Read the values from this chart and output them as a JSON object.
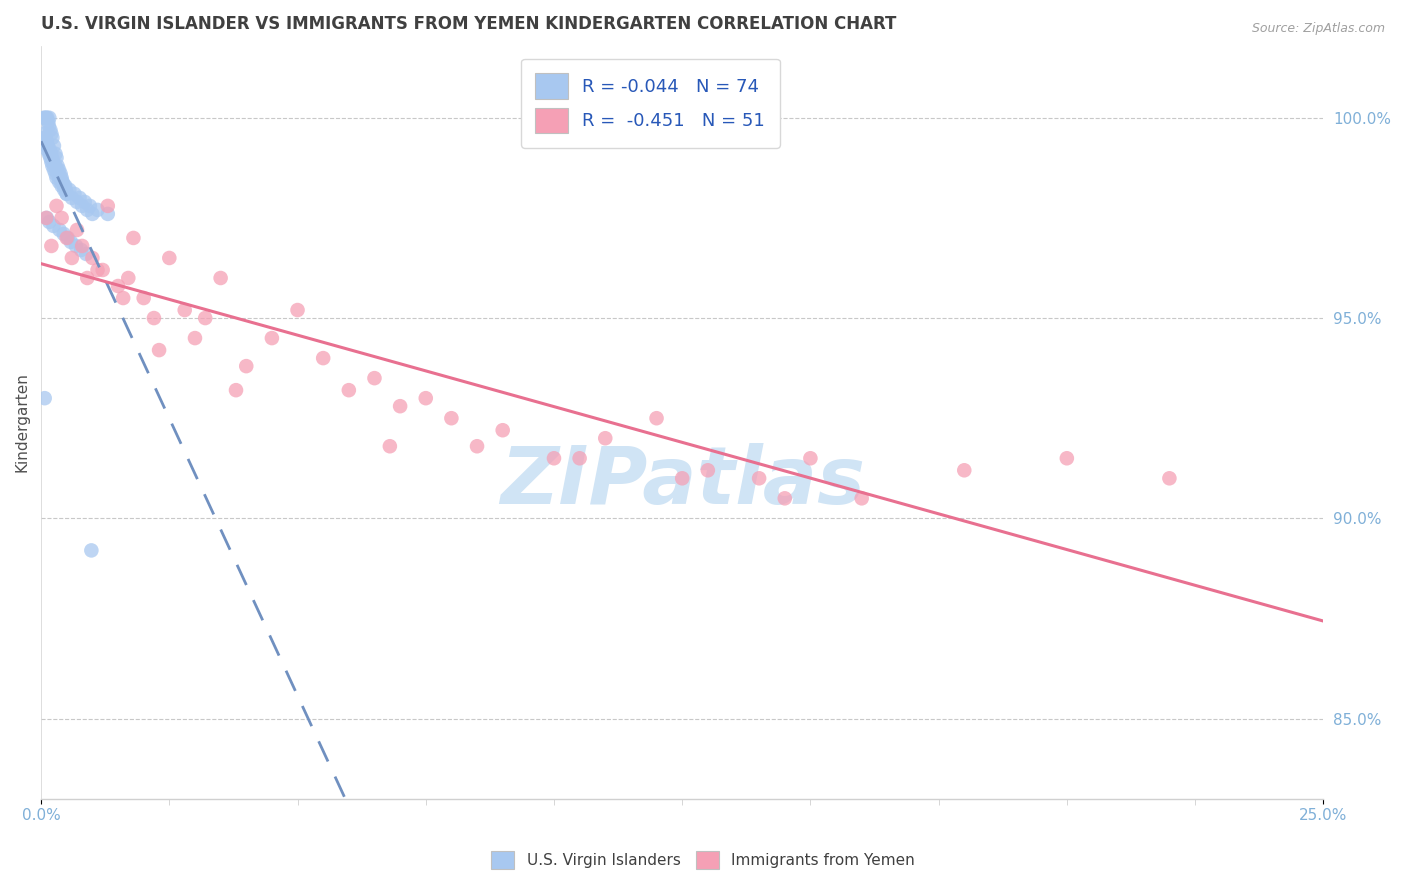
{
  "title": "U.S. VIRGIN ISLANDER VS IMMIGRANTS FROM YEMEN KINDERGARTEN CORRELATION CHART",
  "source": "Source: ZipAtlas.com",
  "ylabel": "Kindergarten",
  "xlim": [
    0.0,
    25.0
  ],
  "ylim": [
    83.0,
    101.8
  ],
  "R1": -0.044,
  "N1": 74,
  "R2": -0.451,
  "N2": 51,
  "legend_label1": "U.S. Virgin Islanders",
  "legend_label2": "Immigrants from Yemen",
  "color1": "#a8c8f0",
  "color2": "#f5a0b5",
  "trendline1_color": "#7090c0",
  "trendline2_color": "#e87090",
  "title_color": "#404040",
  "source_color": "#a0a0a0",
  "axis_label_color": "#80b0d8",
  "watermark_color": "#d0e4f5",
  "ytick_positions": [
    85.0,
    90.0,
    95.0,
    100.0
  ],
  "ytick_labels": [
    "85.0%",
    "90.0%",
    "95.0%",
    "100.0%"
  ],
  "xtick_positions": [
    0.0,
    25.0
  ],
  "xtick_labels": [
    "0.0%",
    "25.0%"
  ],
  "scatter1_x": [
    0.05,
    0.08,
    0.1,
    0.12,
    0.14,
    0.15,
    0.16,
    0.18,
    0.2,
    0.22,
    0.25,
    0.28,
    0.3,
    0.32,
    0.35,
    0.38,
    0.4,
    0.42,
    0.45,
    0.48,
    0.5,
    0.05,
    0.08,
    0.1,
    0.12,
    0.15,
    0.18,
    0.2,
    0.22,
    0.25,
    0.28,
    0.3,
    0.35,
    0.4,
    0.45,
    0.5,
    0.6,
    0.7,
    0.8,
    0.9,
    1.0,
    0.06,
    0.09,
    0.11,
    0.13,
    0.17,
    0.19,
    0.21,
    0.23,
    0.27,
    0.31,
    0.33,
    0.37,
    0.41,
    0.47,
    0.55,
    0.65,
    0.75,
    0.85,
    0.95,
    1.1,
    1.3,
    0.07,
    0.11,
    0.16,
    0.24,
    0.36,
    0.44,
    0.52,
    0.58,
    0.68,
    0.78,
    0.88,
    0.98
  ],
  "scatter1_y": [
    100.0,
    100.0,
    100.0,
    100.0,
    99.9,
    99.8,
    100.0,
    99.7,
    99.6,
    99.5,
    99.3,
    99.1,
    99.0,
    98.8,
    98.7,
    98.6,
    98.5,
    98.4,
    98.3,
    98.2,
    98.1,
    99.5,
    99.4,
    99.3,
    99.2,
    99.1,
    99.0,
    98.9,
    98.8,
    98.7,
    98.6,
    98.5,
    98.4,
    98.3,
    98.2,
    98.1,
    98.0,
    97.9,
    97.8,
    97.7,
    97.6,
    99.6,
    99.5,
    99.4,
    99.3,
    99.2,
    99.1,
    99.0,
    98.9,
    98.8,
    98.7,
    98.6,
    98.5,
    98.4,
    98.3,
    98.2,
    98.1,
    98.0,
    97.9,
    97.8,
    97.7,
    97.6,
    93.0,
    97.5,
    97.4,
    97.3,
    97.2,
    97.1,
    97.0,
    96.9,
    96.8,
    96.7,
    96.6,
    89.2
  ],
  "scatter2_x": [
    0.1,
    0.2,
    0.3,
    0.5,
    0.6,
    0.7,
    0.9,
    1.0,
    1.2,
    1.3,
    1.5,
    1.7,
    1.8,
    2.0,
    2.2,
    2.5,
    2.8,
    3.0,
    3.2,
    3.5,
    4.0,
    4.5,
    5.0,
    5.5,
    6.0,
    6.5,
    7.0,
    7.5,
    8.0,
    9.0,
    10.0,
    11.0,
    12.0,
    13.0,
    14.0,
    15.0,
    16.0,
    18.0,
    20.0,
    22.0,
    0.4,
    0.8,
    1.1,
    1.6,
    2.3,
    3.8,
    6.8,
    8.5,
    10.5,
    12.5,
    14.5
  ],
  "scatter2_y": [
    97.5,
    96.8,
    97.8,
    97.0,
    96.5,
    97.2,
    96.0,
    96.5,
    96.2,
    97.8,
    95.8,
    96.0,
    97.0,
    95.5,
    95.0,
    96.5,
    95.2,
    94.5,
    95.0,
    96.0,
    93.8,
    94.5,
    95.2,
    94.0,
    93.2,
    93.5,
    92.8,
    93.0,
    92.5,
    92.2,
    91.5,
    92.0,
    92.5,
    91.2,
    91.0,
    91.5,
    90.5,
    91.2,
    91.5,
    91.0,
    97.5,
    96.8,
    96.2,
    95.5,
    94.2,
    93.2,
    91.8,
    91.8,
    91.5,
    91.0,
    90.5
  ]
}
